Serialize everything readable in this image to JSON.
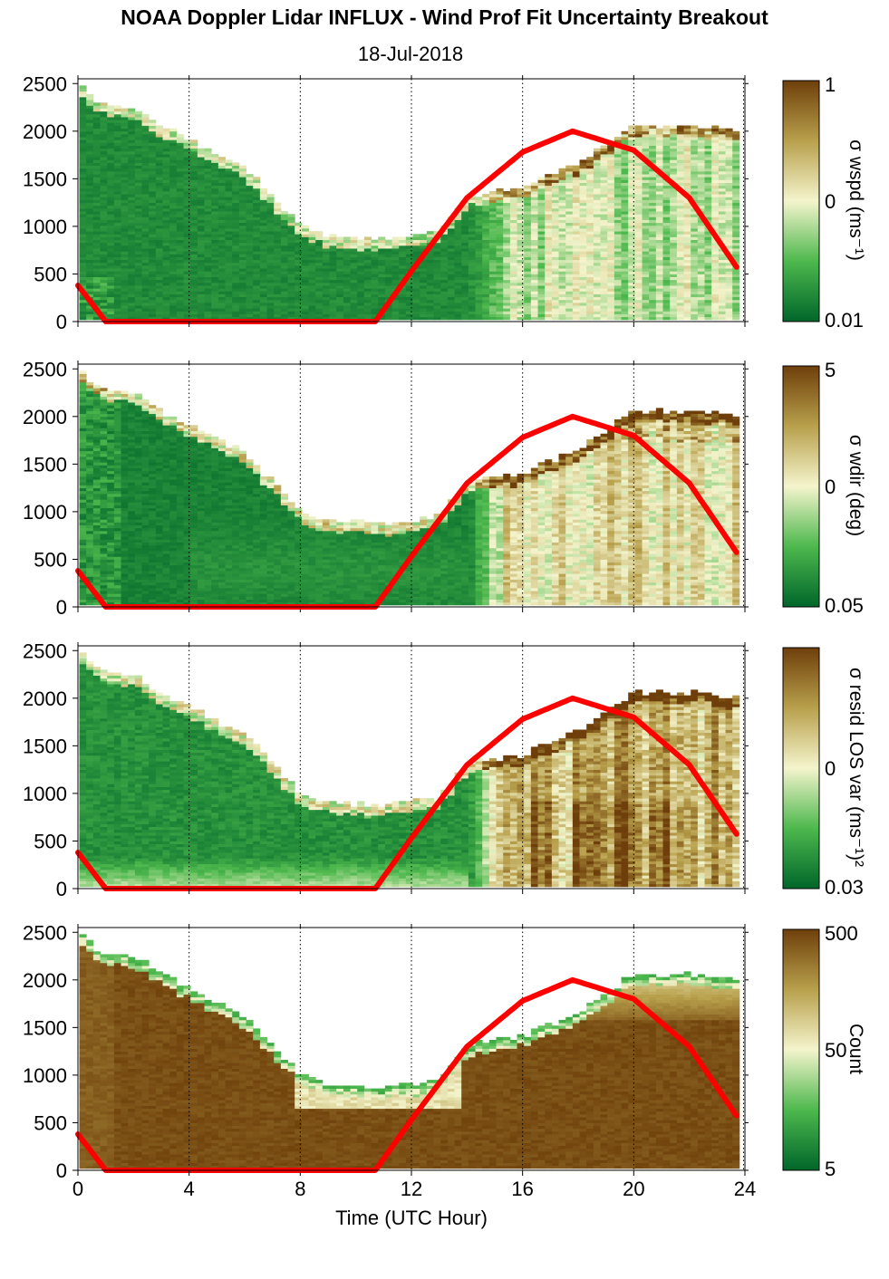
{
  "title": "NOAA Doppler Lidar INFLUX - Wind Prof Fit Uncertainty Breakout",
  "subtitle": "18-Jul-2018",
  "xlabel": "Time (UTC Hour)",
  "colors": {
    "dark_green": "#00662a",
    "mid_green": "#4db84d",
    "pale_cream": "#f4f4cc",
    "olive": "#b8a04c",
    "dark_brown": "#6e3f0a",
    "sun_curve": "#ff0000"
  },
  "chart_data": [
    {
      "type": "heatmap",
      "name": "sigma-wspd",
      "colorbar_label": "σ wspd (ms⁻¹)",
      "colorbar_ticks": [
        "1",
        "0",
        "0.01"
      ],
      "x_ticks": [
        "0",
        "4",
        "8",
        "12",
        "16",
        "20",
        "24"
      ],
      "y_ticks": [
        "0",
        "500",
        "1000",
        "1500",
        "2000",
        "2500"
      ],
      "xlim": [
        0,
        24
      ],
      "ylim": [
        0,
        2550
      ],
      "xgrid": "dotted",
      "ygrid": false,
      "top_of_data_m": [
        [
          0,
          2480
        ],
        [
          1,
          2250
        ],
        [
          2,
          2230
        ],
        [
          3,
          2050
        ],
        [
          4,
          1900
        ],
        [
          5,
          1750
        ],
        [
          6,
          1600
        ],
        [
          7,
          1300
        ],
        [
          8,
          1000
        ],
        [
          9,
          880
        ],
        [
          10,
          880
        ],
        [
          11,
          850
        ],
        [
          12,
          900
        ],
        [
          13,
          950
        ],
        [
          14,
          1300
        ],
        [
          16,
          1400
        ],
        [
          18,
          1650
        ],
        [
          20,
          2050
        ],
        [
          22,
          2050
        ],
        [
          23.8,
          1980
        ]
      ],
      "sun_curve_m": [
        [
          0,
          380
        ],
        [
          1,
          0
        ],
        [
          10.7,
          0
        ],
        [
          12,
          530
        ],
        [
          14,
          1300
        ],
        [
          16,
          1780
        ],
        [
          17.8,
          2000
        ],
        [
          20,
          1800
        ],
        [
          22,
          1300
        ],
        [
          23.8,
          530
        ]
      ]
    },
    {
      "type": "heatmap",
      "name": "sigma-wdir",
      "colorbar_label": "σ wdir (deg)",
      "colorbar_ticks": [
        "5",
        "0",
        "0.05"
      ],
      "x_ticks": [
        "0",
        "4",
        "8",
        "12",
        "16",
        "20",
        "24"
      ],
      "y_ticks": [
        "0",
        "500",
        "1000",
        "1500",
        "2000",
        "2500"
      ],
      "xlim": [
        0,
        24
      ],
      "ylim": [
        0,
        2550
      ],
      "xgrid": "dotted",
      "ygrid": false
    },
    {
      "type": "heatmap",
      "name": "sigma-resid-los-var",
      "colorbar_label": "σ resid LOS var (ms⁻¹)²",
      "colorbar_ticks": [
        "0",
        "0.03"
      ],
      "x_ticks": [
        "0",
        "4",
        "8",
        "12",
        "16",
        "20",
        "24"
      ],
      "y_ticks": [
        "0",
        "500",
        "1000",
        "1500",
        "2000",
        "2500"
      ],
      "xlim": [
        0,
        24
      ],
      "ylim": [
        0,
        2550
      ],
      "xgrid": "dotted",
      "ygrid": false
    },
    {
      "type": "heatmap",
      "name": "count",
      "colorbar_label": "Count",
      "colorbar_ticks": [
        "500",
        "50",
        "5"
      ],
      "x_ticks": [
        "0",
        "4",
        "8",
        "12",
        "16",
        "20",
        "24"
      ],
      "y_ticks": [
        "0",
        "500",
        "1000",
        "1500",
        "2000",
        "2500"
      ],
      "xlim": [
        0,
        24
      ],
      "ylim": [
        0,
        2550
      ],
      "xgrid": "dotted",
      "ygrid": false
    }
  ]
}
